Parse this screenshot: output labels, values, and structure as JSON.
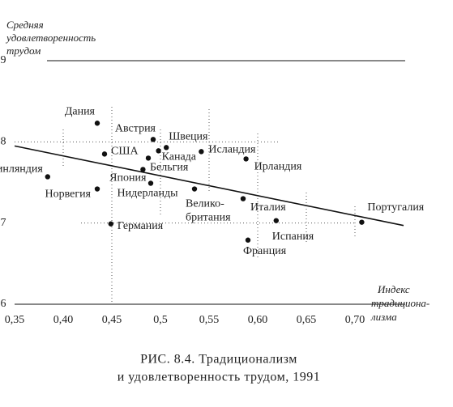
{
  "chart_data": {
    "type": "scatter",
    "y_axis_title": [
      "Средняя",
      "удовлетворенность",
      "трудом"
    ],
    "x_axis_title": [
      "Индекс",
      "традициона-",
      "лизма"
    ],
    "caption": [
      "РИС. 8.4. Традиционализм",
      "и удовлетворенность трудом, 1991"
    ],
    "labels": [
      "Дания",
      "Австрия",
      "США",
      "Швеция",
      "Канада",
      "Исландия",
      "Ирландия",
      "Бельгия",
      "Финляндия",
      "Япония",
      "Норвегия",
      "Нидерланды",
      "Велико-британия",
      "Италия",
      "Германия",
      "Испания",
      "Франция",
      "Португалия"
    ],
    "x": [
      0.435,
      0.4925,
      0.4425,
      0.506,
      0.498,
      0.542,
      0.588,
      0.4875,
      0.384,
      0.482,
      0.435,
      0.49,
      0.535,
      0.585,
      0.449,
      0.619,
      0.59,
      0.707
    ],
    "values": [
      8.23,
      8.03,
      7.85,
      7.93,
      7.89,
      7.88,
      7.79,
      7.8,
      7.57,
      7.66,
      7.42,
      7.49,
      7.42,
      7.3,
      6.99,
      7.03,
      6.79,
      7.01
    ],
    "color": "#111111",
    "trend": {
      "x": [
        0.35,
        0.75
      ],
      "values": [
        7.95,
        6.97
      ]
    },
    "xlim": [
      0.35,
      0.75
    ],
    "ylim": [
      6,
      9
    ],
    "xticks": [
      {
        "value": 0.35,
        "label": "0,35"
      },
      {
        "value": 0.4,
        "label": "0,40"
      },
      {
        "value": 0.45,
        "label": "0,45"
      },
      {
        "value": 0.5,
        "label": "0,5"
      },
      {
        "value": 0.55,
        "label": "0,55"
      },
      {
        "value": 0.6,
        "label": "0,60"
      },
      {
        "value": 0.65,
        "label": "0,65"
      },
      {
        "value": 0.7,
        "label": "0,70"
      }
    ],
    "yticks": [
      9,
      8,
      7,
      6
    ]
  }
}
